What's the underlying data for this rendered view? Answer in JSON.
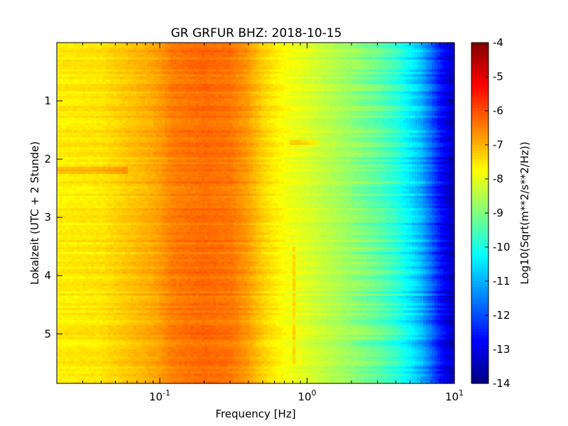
{
  "chart_data": {
    "type": "heatmap",
    "title": "GR GRFUR BHZ: 2018-10-15",
    "xlabel": "Frequency [Hz]",
    "ylabel": "Lokalzeit (UTC + 2 Stunde)",
    "x_scale": "log",
    "xlim": [
      0.02,
      10
    ],
    "ylim": [
      5.85,
      0
    ],
    "x_ticks": [
      {
        "value": 0.1,
        "base": "10",
        "exp": "-1"
      },
      {
        "value": 1,
        "base": "10",
        "exp": "0"
      },
      {
        "value": 10,
        "base": "10",
        "exp": "1"
      }
    ],
    "y_ticks": [
      "1",
      "2",
      "3",
      "4",
      "5"
    ],
    "colorbar": {
      "label": "Log10(Sqrt(m**2/s**2/Hz))",
      "range": [
        -14,
        -4
      ],
      "ticks": [
        "-4",
        "-5",
        "-6",
        "-7",
        "-8",
        "-9",
        "-10",
        "-11",
        "-12",
        "-13",
        "-14"
      ],
      "colormap": "jet"
    },
    "spectrum_profile": {
      "frequency_hz": [
        0.02,
        0.04,
        0.06,
        0.08,
        0.1,
        0.12,
        0.15,
        0.2,
        0.3,
        0.4,
        0.5,
        0.7,
        1.0,
        1.5,
        2.0,
        3.0,
        4.0,
        5.0,
        6.0,
        7.0,
        8.0,
        10.0
      ],
      "log10_psd": [
        -7.6,
        -7.5,
        -7.2,
        -7.0,
        -6.8,
        -6.5,
        -6.4,
        -6.3,
        -6.4,
        -6.8,
        -7.3,
        -7.8,
        -8.1,
        -8.5,
        -8.8,
        -9.3,
        -9.8,
        -10.4,
        -11.0,
        -11.8,
        -12.6,
        -13.5
      ]
    }
  }
}
